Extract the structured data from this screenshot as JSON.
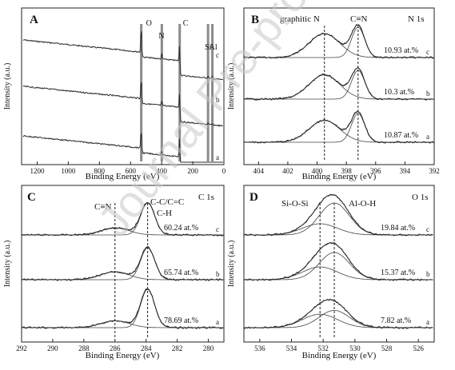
{
  "chart_data": [
    {
      "type": "line",
      "panel_label": "A",
      "xlabel": "Binding Energy (eV)",
      "ylabel": "Intensity (a.u.)",
      "xlim": [
        1300,
        0
      ],
      "x_ticks": [
        "1200",
        "1000",
        "800",
        "600",
        "400",
        "200",
        "0"
      ],
      "peak_labels": [
        {
          "text": "O",
          "x": 531
        },
        {
          "text": "N",
          "x": 399
        },
        {
          "text": "C",
          "x": 284
        },
        {
          "text": "Si",
          "x": 102
        },
        {
          "text": "Al",
          "x": 74
        }
      ],
      "series": [
        {
          "label": "c",
          "peaks": [
            {
              "x": 531,
              "h": 0.95
            },
            {
              "x": 399,
              "h": 0.18
            },
            {
              "x": 284,
              "h": 0.62
            },
            {
              "x": 102,
              "h": 0.08
            },
            {
              "x": 74,
              "h": 0.06
            }
          ]
        },
        {
          "label": "b",
          "peaks": [
            {
              "x": 531,
              "h": 0.9
            },
            {
              "x": 399,
              "h": 0.16
            },
            {
              "x": 284,
              "h": 0.68
            },
            {
              "x": 102,
              "h": 0.06
            },
            {
              "x": 74,
              "h": 0.05
            }
          ]
        },
        {
          "label": "a",
          "peaks": [
            {
              "x": 531,
              "h": 0.92
            },
            {
              "x": 399,
              "h": 0.18
            },
            {
              "x": 284,
              "h": 0.95
            },
            {
              "x": 102,
              "h": 0.04
            },
            {
              "x": 74,
              "h": 0.03
            }
          ]
        }
      ]
    },
    {
      "type": "line",
      "panel_label": "B",
      "region": "N 1s",
      "xlabel": "Binding Energy (eV)",
      "ylabel": "Intensity (a.u.)",
      "xlim": [
        405,
        392
      ],
      "x_ticks": [
        "404",
        "402",
        "400",
        "398",
        "396",
        "394",
        "392"
      ],
      "components": [
        {
          "name": "graphitic N",
          "center": 399.5
        },
        {
          "name": "C≡N",
          "center": 397.2
        }
      ],
      "series": [
        {
          "label": "c",
          "annotation": "10.93 at.%",
          "graphitic_height": 0.75,
          "cn_height": 0.95
        },
        {
          "label": "b",
          "annotation": "10.3 at.%",
          "graphitic_height": 0.8,
          "cn_height": 0.95
        },
        {
          "label": "a",
          "annotation": "10.87 at.%",
          "graphitic_height": 0.72,
          "cn_height": 0.95
        }
      ]
    },
    {
      "type": "line",
      "panel_label": "C",
      "region": "C 1s",
      "xlabel": "Binding Energy (eV)",
      "ylabel": "Intensity (a.u.)",
      "xlim": [
        292,
        279
      ],
      "x_ticks": [
        "292",
        "290",
        "288",
        "286",
        "284",
        "282",
        "280"
      ],
      "components": [
        {
          "name": "C≡N",
          "center": 286.0
        },
        {
          "name": "C-C/C=C",
          "center": 283.9
        },
        {
          "name": "C-H",
          "center": 283.9
        }
      ],
      "series": [
        {
          "label": "c",
          "annotation": "60.24 at.%",
          "cn_height": 0.22,
          "cc_height": 1.0
        },
        {
          "label": "b",
          "annotation": "65.74 at.%",
          "cn_height": 0.25,
          "cc_height": 1.0
        },
        {
          "label": "a",
          "annotation": "78.69 at.%",
          "cn_height": 0.18,
          "cc_height": 1.0
        }
      ]
    },
    {
      "type": "line",
      "panel_label": "D",
      "region": "O 1s",
      "xlabel": "Binding Energy (eV)",
      "ylabel": "Intensity (a.u.)",
      "xlim": [
        537,
        525
      ],
      "x_ticks": [
        "536",
        "534",
        "532",
        "530",
        "528",
        "526"
      ],
      "components": [
        {
          "name": "Si-O-Si",
          "center": 532.2
        },
        {
          "name": "Al-O-H",
          "center": 531.3
        }
      ],
      "series": [
        {
          "label": "c",
          "annotation": "19.84 at.%",
          "sio_height": 0.35,
          "aloh_height": 1.0
        },
        {
          "label": "b",
          "annotation": "15.37 at.%",
          "sio_height": 0.4,
          "aloh_height": 0.85
        },
        {
          "label": "a",
          "annotation": "7.82 at.%",
          "sio_height": 0.35,
          "aloh_height": 0.45
        }
      ]
    }
  ],
  "watermark": "Journal Pre-proof"
}
